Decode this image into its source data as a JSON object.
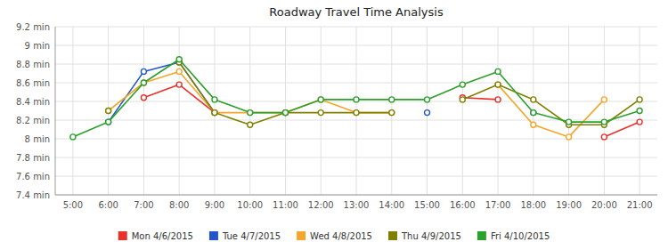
{
  "chart_data": {
    "type": "line",
    "title": "Roadway Travel Time Analysis",
    "x": [
      5,
      6,
      7,
      8,
      9,
      10,
      11,
      12,
      13,
      14,
      15,
      16,
      17,
      18,
      19,
      20,
      21
    ],
    "xlim": [
      4.5,
      21.5
    ],
    "xticks": [
      {
        "value": 5,
        "label": "5:00"
      },
      {
        "value": 6,
        "label": "6:00"
      },
      {
        "value": 7,
        "label": "7:00"
      },
      {
        "value": 8,
        "label": "8:00"
      },
      {
        "value": 9,
        "label": "9:00"
      },
      {
        "value": 10,
        "label": "10:00"
      },
      {
        "value": 11,
        "label": "11:00"
      },
      {
        "value": 12,
        "label": "12:00"
      },
      {
        "value": 13,
        "label": "13:00"
      },
      {
        "value": 14,
        "label": "14:00"
      },
      {
        "value": 15,
        "label": "15:00"
      },
      {
        "value": 16,
        "label": "16:00"
      },
      {
        "value": 17,
        "label": "17:00"
      },
      {
        "value": 18,
        "label": "18:00"
      },
      {
        "value": 19,
        "label": "19:00"
      },
      {
        "value": 20,
        "label": "20:00"
      },
      {
        "value": 21,
        "label": "21:00"
      }
    ],
    "ylim": [
      7.4,
      9.2
    ],
    "yticks": [
      {
        "value": 7.4,
        "label": "7.4 min"
      },
      {
        "value": 7.6,
        "label": "7.6 min"
      },
      {
        "value": 7.8,
        "label": "7.8 min"
      },
      {
        "value": 8.0,
        "label": "8 min"
      },
      {
        "value": 8.2,
        "label": "8.2 min"
      },
      {
        "value": 8.4,
        "label": "8.4 min"
      },
      {
        "value": 8.6,
        "label": "8.6 min"
      },
      {
        "value": 8.8,
        "label": "8.8 min"
      },
      {
        "value": 9.0,
        "label": "9 min"
      },
      {
        "value": 9.2,
        "label": "9.2 min"
      }
    ],
    "grid": true,
    "legend": "bottom",
    "marker": "circle",
    "series": [
      {
        "name": "Mon 4/6/2015",
        "color": "#e8312a",
        "values": [
          null,
          null,
          8.44,
          8.58,
          8.28,
          null,
          8.28,
          null,
          null,
          null,
          null,
          8.44,
          8.42,
          null,
          null,
          8.02,
          8.18
        ]
      },
      {
        "name": "Tue 4/7/2015",
        "color": "#2255cc",
        "values": [
          null,
          8.18,
          8.72,
          8.82,
          8.28,
          null,
          8.28,
          null,
          null,
          null,
          8.28,
          null,
          null,
          8.28,
          null,
          null,
          null
        ]
      },
      {
        "name": "Wed 4/8/2015",
        "color": "#f5a52a",
        "values": [
          null,
          8.3,
          8.6,
          8.72,
          8.28,
          8.28,
          8.28,
          8.42,
          8.28,
          8.28,
          null,
          null,
          8.58,
          8.15,
          8.02,
          8.42,
          null
        ]
      },
      {
        "name": "Thu 4/9/2015",
        "color": "#808000",
        "values": [
          null,
          8.3,
          null,
          8.82,
          8.28,
          8.15,
          8.28,
          8.28,
          8.28,
          8.28,
          null,
          8.42,
          8.58,
          8.42,
          8.15,
          8.15,
          8.42
        ]
      },
      {
        "name": "Fri 4/10/2015",
        "color": "#2ca02c",
        "values": [
          8.02,
          8.18,
          8.6,
          8.85,
          8.42,
          8.28,
          8.28,
          8.42,
          8.42,
          8.42,
          8.42,
          8.58,
          8.72,
          8.28,
          8.18,
          8.18,
          8.3
        ]
      }
    ]
  }
}
